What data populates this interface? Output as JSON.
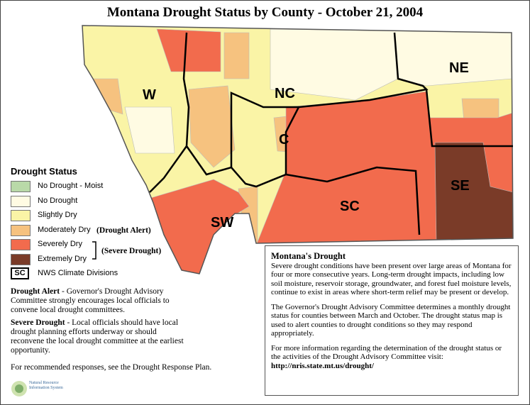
{
  "title": "Montana Drought Status by County - October 21, 2004",
  "divisions": [
    "W",
    "NC",
    "NE",
    "C",
    "SW",
    "SC",
    "SE"
  ],
  "legend": {
    "title": "Drought Status",
    "items": [
      {
        "label": "No Drought - Moist",
        "color": "#b9d9a8"
      },
      {
        "label": "No Drought",
        "color": "#fffbe3"
      },
      {
        "label": "Slightly Dry",
        "color": "#faf4a6"
      },
      {
        "label": "Moderately Dry",
        "color": "#f6c27f"
      },
      {
        "label": "Severely Dry",
        "color": "#f26b4d"
      },
      {
        "label": "Extremely Dry",
        "color": "#7a3b28"
      }
    ],
    "alert_label": "(Drought Alert)",
    "severe_label": "(Severe Drought)",
    "nws_code": "SC",
    "nws_label": "NWS Climate Divisions"
  },
  "notes": [
    {
      "heading": "Drought Alert",
      "text": " - Governor's Drought Advisory Committee strongly encourages local officials to convene local drought committees."
    },
    {
      "heading": "Severe Drought",
      "text": " - Local officials should have local drought planning efforts underway or should reconvene the local drought committee at the earliest opportunity."
    }
  ],
  "recommend": "For recommended responses, see the Drought Response Plan.",
  "logo": "Natural Resource Information System",
  "info_box": {
    "title": "Montana's Drought",
    "paragraphs": [
      "Severe drought conditions have been present over large areas of Montana for four or more consecutive years. Long-term drought impacts, including low soil moisture, reservoir storage, groundwater, and forest fuel moisture levels, continue to exist in areas where short-term relief may be present or develop.",
      "The Governor's Drought Advisory Committee determines a monthly drought status for counties between March and October. The drought status map is used to alert counties to drought conditions so they may respond appropriately.",
      "For more information regarding the determination of the drought status or the activities of the Drought Advisory Committee visit:"
    ],
    "url": "http://nris.state.mt.us/drought/"
  }
}
